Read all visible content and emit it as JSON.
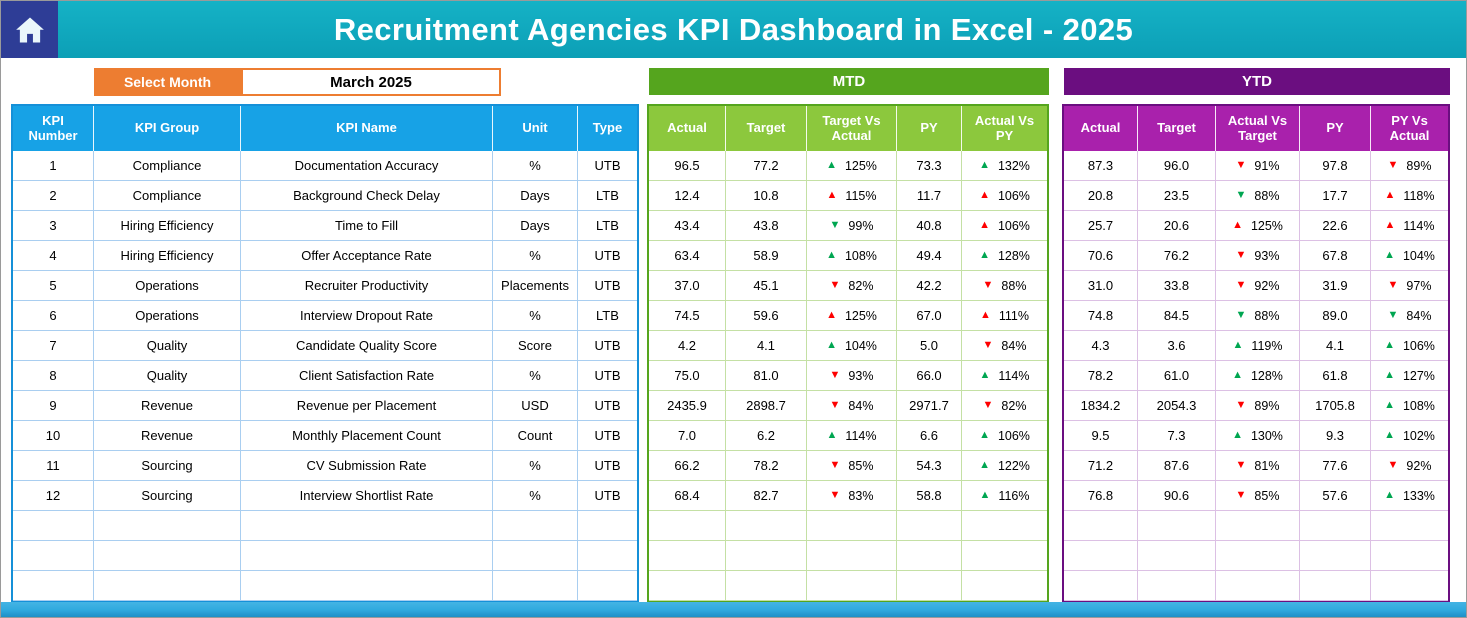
{
  "header": {
    "title": "Recruitment Agencies KPI Dashboard in Excel - 2025"
  },
  "selector": {
    "label": "Select Month",
    "value": "March 2025"
  },
  "sections": {
    "mtd": "MTD",
    "ytd": "YTD"
  },
  "kpi_headers": [
    "KPI Number",
    "KPI Group",
    "KPI Name",
    "Unit",
    "Type"
  ],
  "mtd_headers": [
    "Actual",
    "Target",
    "Target Vs Actual",
    "PY",
    "Actual Vs PY"
  ],
  "ytd_headers": [
    "Actual",
    "Target",
    "Actual Vs Target",
    "PY",
    "PY Vs Actual"
  ],
  "empty_row_count": 3,
  "colors": {
    "header_bar": "#15B2C6",
    "header_bar_dark": "#0C9FB6",
    "home_tile": "#2E3D96",
    "accent_orange": "#ED7D31",
    "kpi_header": "#17A2E6",
    "kpi_border": "#1590D8",
    "kpi_grid": "#A9CEF0",
    "mtd_bar": "#55A51E",
    "mtd_header": "#8CC83D",
    "mtd_grid": "#C4E0A4",
    "ytd_bar": "#6B0E80",
    "ytd_header": "#A921AC",
    "ytd_grid": "#DCC0E4",
    "arrow_good": "#00A651",
    "arrow_bad": "#FE0000",
    "bottom_bar": "#2FA9DE"
  },
  "rows": [
    {
      "num": "1",
      "group": "Compliance",
      "name": "Documentation Accuracy",
      "unit": "%",
      "type": "UTB",
      "mtd": {
        "actual": "96.5",
        "target": "77.2",
        "target_vs_actual": {
          "dir": "up",
          "tone": "good",
          "pct": "125%"
        },
        "py": "73.3",
        "actual_vs_py": {
          "dir": "up",
          "tone": "good",
          "pct": "132%"
        }
      },
      "ytd": {
        "actual": "87.3",
        "target": "96.0",
        "actual_vs_target": {
          "dir": "down",
          "tone": "bad",
          "pct": "91%"
        },
        "py": "97.8",
        "py_vs_actual": {
          "dir": "down",
          "tone": "bad",
          "pct": "89%"
        }
      }
    },
    {
      "num": "2",
      "group": "Compliance",
      "name": "Background Check Delay",
      "unit": "Days",
      "type": "LTB",
      "mtd": {
        "actual": "12.4",
        "target": "10.8",
        "target_vs_actual": {
          "dir": "up",
          "tone": "bad",
          "pct": "115%"
        },
        "py": "11.7",
        "actual_vs_py": {
          "dir": "up",
          "tone": "bad",
          "pct": "106%"
        }
      },
      "ytd": {
        "actual": "20.8",
        "target": "23.5",
        "actual_vs_target": {
          "dir": "down",
          "tone": "good",
          "pct": "88%"
        },
        "py": "17.7",
        "py_vs_actual": {
          "dir": "up",
          "tone": "bad",
          "pct": "118%"
        }
      }
    },
    {
      "num": "3",
      "group": "Hiring Efficiency",
      "name": "Time to Fill",
      "unit": "Days",
      "type": "LTB",
      "mtd": {
        "actual": "43.4",
        "target": "43.8",
        "target_vs_actual": {
          "dir": "down",
          "tone": "good",
          "pct": "99%"
        },
        "py": "40.8",
        "actual_vs_py": {
          "dir": "up",
          "tone": "bad",
          "pct": "106%"
        }
      },
      "ytd": {
        "actual": "25.7",
        "target": "20.6",
        "actual_vs_target": {
          "dir": "up",
          "tone": "bad",
          "pct": "125%"
        },
        "py": "22.6",
        "py_vs_actual": {
          "dir": "up",
          "tone": "bad",
          "pct": "114%"
        }
      }
    },
    {
      "num": "4",
      "group": "Hiring Efficiency",
      "name": "Offer Acceptance Rate",
      "unit": "%",
      "type": "UTB",
      "mtd": {
        "actual": "63.4",
        "target": "58.9",
        "target_vs_actual": {
          "dir": "up",
          "tone": "good",
          "pct": "108%"
        },
        "py": "49.4",
        "actual_vs_py": {
          "dir": "up",
          "tone": "good",
          "pct": "128%"
        }
      },
      "ytd": {
        "actual": "70.6",
        "target": "76.2",
        "actual_vs_target": {
          "dir": "down",
          "tone": "bad",
          "pct": "93%"
        },
        "py": "67.8",
        "py_vs_actual": {
          "dir": "up",
          "tone": "good",
          "pct": "104%"
        }
      }
    },
    {
      "num": "5",
      "group": "Operations",
      "name": "Recruiter Productivity",
      "unit": "Placements",
      "type": "UTB",
      "mtd": {
        "actual": "37.0",
        "target": "45.1",
        "target_vs_actual": {
          "dir": "down",
          "tone": "bad",
          "pct": "82%"
        },
        "py": "42.2",
        "actual_vs_py": {
          "dir": "down",
          "tone": "bad",
          "pct": "88%"
        }
      },
      "ytd": {
        "actual": "31.0",
        "target": "33.8",
        "actual_vs_target": {
          "dir": "down",
          "tone": "bad",
          "pct": "92%"
        },
        "py": "31.9",
        "py_vs_actual": {
          "dir": "down",
          "tone": "bad",
          "pct": "97%"
        }
      }
    },
    {
      "num": "6",
      "group": "Operations",
      "name": "Interview Dropout Rate",
      "unit": "%",
      "type": "LTB",
      "mtd": {
        "actual": "74.5",
        "target": "59.6",
        "target_vs_actual": {
          "dir": "up",
          "tone": "bad",
          "pct": "125%"
        },
        "py": "67.0",
        "actual_vs_py": {
          "dir": "up",
          "tone": "bad",
          "pct": "111%"
        }
      },
      "ytd": {
        "actual": "74.8",
        "target": "84.5",
        "actual_vs_target": {
          "dir": "down",
          "tone": "good",
          "pct": "88%"
        },
        "py": "89.0",
        "py_vs_actual": {
          "dir": "down",
          "tone": "good",
          "pct": "84%"
        }
      }
    },
    {
      "num": "7",
      "group": "Quality",
      "name": "Candidate Quality Score",
      "unit": "Score",
      "type": "UTB",
      "mtd": {
        "actual": "4.2",
        "target": "4.1",
        "target_vs_actual": {
          "dir": "up",
          "tone": "good",
          "pct": "104%"
        },
        "py": "5.0",
        "actual_vs_py": {
          "dir": "down",
          "tone": "bad",
          "pct": "84%"
        }
      },
      "ytd": {
        "actual": "4.3",
        "target": "3.6",
        "actual_vs_target": {
          "dir": "up",
          "tone": "good",
          "pct": "119%"
        },
        "py": "4.1",
        "py_vs_actual": {
          "dir": "up",
          "tone": "good",
          "pct": "106%"
        }
      }
    },
    {
      "num": "8",
      "group": "Quality",
      "name": "Client Satisfaction Rate",
      "unit": "%",
      "type": "UTB",
      "mtd": {
        "actual": "75.0",
        "target": "81.0",
        "target_vs_actual": {
          "dir": "down",
          "tone": "bad",
          "pct": "93%"
        },
        "py": "66.0",
        "actual_vs_py": {
          "dir": "up",
          "tone": "good",
          "pct": "114%"
        }
      },
      "ytd": {
        "actual": "78.2",
        "target": "61.0",
        "actual_vs_target": {
          "dir": "up",
          "tone": "good",
          "pct": "128%"
        },
        "py": "61.8",
        "py_vs_actual": {
          "dir": "up",
          "tone": "good",
          "pct": "127%"
        }
      }
    },
    {
      "num": "9",
      "group": "Revenue",
      "name": "Revenue per Placement",
      "unit": "USD",
      "type": "UTB",
      "mtd": {
        "actual": "2435.9",
        "target": "2898.7",
        "target_vs_actual": {
          "dir": "down",
          "tone": "bad",
          "pct": "84%"
        },
        "py": "2971.7",
        "actual_vs_py": {
          "dir": "down",
          "tone": "bad",
          "pct": "82%"
        }
      },
      "ytd": {
        "actual": "1834.2",
        "target": "2054.3",
        "actual_vs_target": {
          "dir": "down",
          "tone": "bad",
          "pct": "89%"
        },
        "py": "1705.8",
        "py_vs_actual": {
          "dir": "up",
          "tone": "good",
          "pct": "108%"
        }
      }
    },
    {
      "num": "10",
      "group": "Revenue",
      "name": "Monthly Placement Count",
      "unit": "Count",
      "type": "UTB",
      "mtd": {
        "actual": "7.0",
        "target": "6.2",
        "target_vs_actual": {
          "dir": "up",
          "tone": "good",
          "pct": "114%"
        },
        "py": "6.6",
        "actual_vs_py": {
          "dir": "up",
          "tone": "good",
          "pct": "106%"
        }
      },
      "ytd": {
        "actual": "9.5",
        "target": "7.3",
        "actual_vs_target": {
          "dir": "up",
          "tone": "good",
          "pct": "130%"
        },
        "py": "9.3",
        "py_vs_actual": {
          "dir": "up",
          "tone": "good",
          "pct": "102%"
        }
      }
    },
    {
      "num": "11",
      "group": "Sourcing",
      "name": "CV Submission Rate",
      "unit": "%",
      "type": "UTB",
      "mtd": {
        "actual": "66.2",
        "target": "78.2",
        "target_vs_actual": {
          "dir": "down",
          "tone": "bad",
          "pct": "85%"
        },
        "py": "54.3",
        "actual_vs_py": {
          "dir": "up",
          "tone": "good",
          "pct": "122%"
        }
      },
      "ytd": {
        "actual": "71.2",
        "target": "87.6",
        "actual_vs_target": {
          "dir": "down",
          "tone": "bad",
          "pct": "81%"
        },
        "py": "77.6",
        "py_vs_actual": {
          "dir": "down",
          "tone": "bad",
          "pct": "92%"
        }
      }
    },
    {
      "num": "12",
      "group": "Sourcing",
      "name": "Interview Shortlist Rate",
      "unit": "%",
      "type": "UTB",
      "mtd": {
        "actual": "68.4",
        "target": "82.7",
        "target_vs_actual": {
          "dir": "down",
          "tone": "bad",
          "pct": "83%"
        },
        "py": "58.8",
        "actual_vs_py": {
          "dir": "up",
          "tone": "good",
          "pct": "116%"
        }
      },
      "ytd": {
        "actual": "76.8",
        "target": "90.6",
        "actual_vs_target": {
          "dir": "down",
          "tone": "bad",
          "pct": "85%"
        },
        "py": "57.6",
        "py_vs_actual": {
          "dir": "up",
          "tone": "good",
          "pct": "133%"
        }
      }
    }
  ]
}
